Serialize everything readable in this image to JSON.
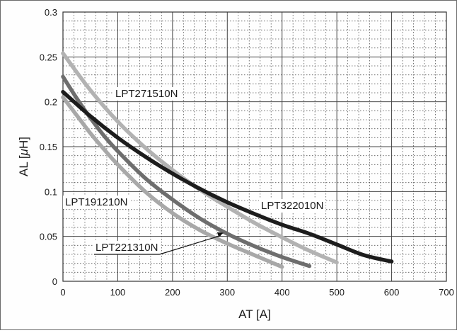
{
  "chart_data": {
    "type": "line",
    "title": "",
    "xlabel": "AT [A]",
    "ylabel_prefix": "AL [",
    "ylabel_mu": "μ",
    "ylabel_suffix": "H]",
    "xlim": [
      0,
      700
    ],
    "ylim": [
      0,
      0.3
    ],
    "major_grid": true,
    "minor_grid": "dotted",
    "x_ticks": [
      0,
      100,
      200,
      300,
      400,
      500,
      600,
      700
    ],
    "x_tick_labels": [
      "0",
      "100",
      "200",
      "300",
      "400",
      "500",
      "600",
      "700"
    ],
    "y_ticks": [
      0,
      0.05,
      0.1,
      0.15,
      0.2,
      0.25,
      0.3
    ],
    "y_tick_labels": [
      "0",
      "0.05",
      "0.1",
      "0.15",
      "0.2",
      "0.25",
      "0.3"
    ],
    "series": [
      {
        "name": "LPT191210N",
        "color": "#a8a8a8",
        "x": [
          0,
          25,
          50,
          75,
          100,
          150,
          200,
          250,
          300,
          350,
          400
        ],
        "y": [
          0.205,
          0.185,
          0.165,
          0.147,
          0.13,
          0.1,
          0.076,
          0.057,
          0.042,
          0.029,
          0.016
        ]
      },
      {
        "name": "LPT221310N",
        "color": "#6e6e6e",
        "x": [
          0,
          25,
          50,
          75,
          100,
          150,
          200,
          250,
          300,
          350,
          400,
          450
        ],
        "y": [
          0.228,
          0.204,
          0.182,
          0.162,
          0.145,
          0.115,
          0.091,
          0.07,
          0.053,
          0.039,
          0.027,
          0.017
        ]
      },
      {
        "name": "LPT271510N",
        "color": "#b2b2b2",
        "x": [
          0,
          50,
          100,
          150,
          200,
          250,
          300,
          350,
          400,
          450,
          500
        ],
        "y": [
          0.254,
          0.213,
          0.178,
          0.149,
          0.124,
          0.102,
          0.083,
          0.065,
          0.049,
          0.034,
          0.021
        ]
      },
      {
        "name": "LPT322010N",
        "color": "#1c1c1c",
        "x": [
          0,
          50,
          100,
          150,
          200,
          250,
          300,
          350,
          400,
          450,
          500,
          550,
          600
        ],
        "y": [
          0.211,
          0.184,
          0.16,
          0.139,
          0.12,
          0.103,
          0.088,
          0.075,
          0.063,
          0.053,
          0.041,
          0.029,
          0.022
        ]
      }
    ]
  }
}
